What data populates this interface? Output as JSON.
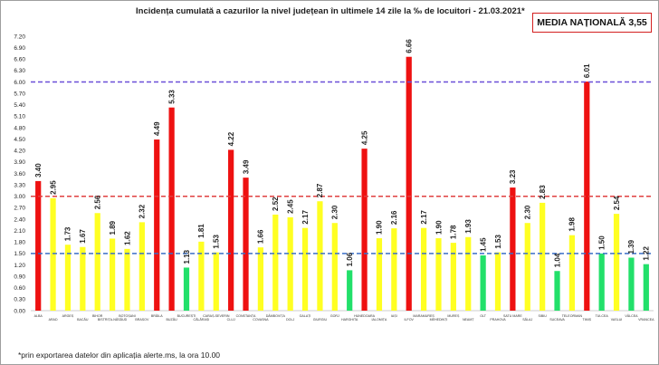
{
  "chart_data": {
    "type": "bar",
    "title": "Incidența cumulată a cazurilor la nivel județean în ultimele 14 zile la ‰ de locuitori - 21.03.2021*",
    "national_average_label": "MEDIA NAȚIONALĂ 3,55",
    "footnote": "*prin exportarea datelor din aplicația alerte.ms, la ora 10.00",
    "ylim": [
      0,
      7.2
    ],
    "yticks": [
      "0.00",
      "0.30",
      "0.60",
      "0.90",
      "1.20",
      "1.50",
      "1.80",
      "2.10",
      "2.40",
      "2.70",
      "3.00",
      "3.30",
      "3.60",
      "3.90",
      "4.20",
      "4.50",
      "4.80",
      "5.10",
      "5.40",
      "5.70",
      "6.00",
      "6.30",
      "6.60",
      "6.90",
      "7.20"
    ],
    "categories": [
      "ALBA",
      "ARAD",
      "ARGEȘ",
      "BACĂU",
      "BIHOR",
      "BISTRIȚA-NĂSĂUD",
      "BOTOȘANI",
      "BRAȘOV",
      "BRĂILA",
      "BUZĂU",
      "BUCUREȘTI",
      "CĂLĂRAȘI",
      "CARAȘ-SEVERIN",
      "CLUJ",
      "CONSTANȚA",
      "COVASNA",
      "DÂMBOVIȚA",
      "DOLJ",
      "GALAȚI",
      "GIURGIU",
      "GORJ",
      "HARGHITA",
      "HUNEDOARA",
      "IALOMIȚA",
      "IAȘI",
      "ILFOV",
      "MARAMUREȘ",
      "MEHEDINȚI",
      "MUREȘ",
      "NEAMȚ",
      "OLT",
      "PRAHOVA",
      "SATU MARE",
      "SĂLAJ",
      "SIBIU",
      "SUCEAVA",
      "TELEORMAN",
      "TIMIȘ",
      "TULCEA",
      "VASLUI",
      "VÂLCEA",
      "VRANCEA"
    ],
    "values": [
      3.4,
      2.95,
      1.73,
      1.67,
      2.56,
      1.89,
      1.62,
      2.32,
      4.49,
      5.33,
      1.13,
      1.81,
      1.53,
      4.22,
      3.49,
      1.66,
      2.52,
      2.45,
      2.17,
      2.87,
      2.3,
      1.06,
      4.25,
      1.9,
      2.16,
      6.66,
      2.17,
      1.9,
      1.78,
      1.93,
      1.45,
      1.53,
      3.23,
      2.3,
      2.83,
      1.04,
      1.98,
      6.01,
      1.5,
      2.54,
      1.39,
      1.22
    ],
    "value_labels": [
      "3.40",
      "2.95",
      "1.73",
      "1.67",
      "2.56",
      "1.89",
      "1.62",
      "2.32",
      "4.49",
      "5.33",
      "1.13",
      "1.81",
      "1.53",
      "4.22",
      "3.49",
      "1.66",
      "2.52",
      "2.45",
      "2.17",
      "2.87",
      "2.30",
      "1.06",
      "4.25",
      "1.90",
      "2.16",
      "6.66",
      "2.17",
      "1.90",
      "1.78",
      "1.93",
      "1.45",
      "1.53",
      "3.23",
      "2.30",
      "2.83",
      "1.04",
      "1.98",
      "6.01",
      "1.50",
      "2.54",
      "1.39",
      "1.22"
    ],
    "reference_lines": [
      {
        "value": 6.0,
        "color": "#6a4fd8"
      },
      {
        "value": 3.0,
        "color": "#e04040"
      },
      {
        "value": 1.5,
        "color": "#3a6fc8"
      }
    ],
    "colors": {
      "red": "#ee1111",
      "yellow": "#ffff22",
      "green": "#22e06a"
    },
    "grid": false
  }
}
